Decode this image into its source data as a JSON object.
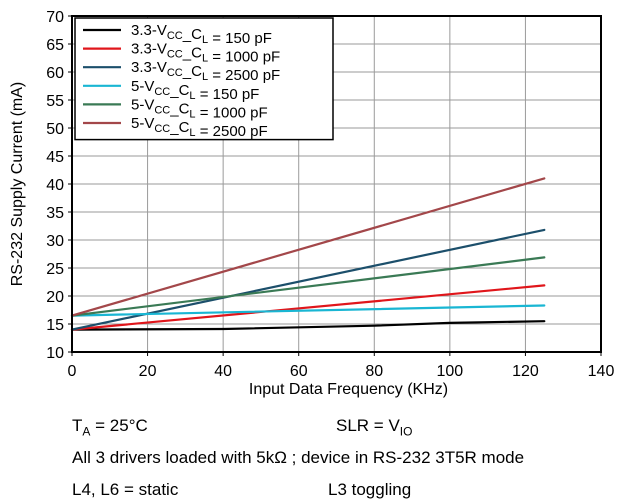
{
  "chart_data": {
    "type": "line",
    "xlabel": "Input Data Frequency (KHz)",
    "ylabel": "RS-232 Supply Current (mA)",
    "xlim": [
      0,
      140
    ],
    "ylim": [
      10,
      70
    ],
    "xticks": [
      0,
      20,
      40,
      60,
      80,
      100,
      120,
      140
    ],
    "yticks": [
      10,
      15,
      20,
      25,
      30,
      35,
      40,
      45,
      50,
      55,
      60,
      65,
      70
    ],
    "grid": true,
    "legend_position": "top-left",
    "series": [
      {
        "name": "3.3-VCC_CL = 150 pF",
        "label": {
          "prefix": "3.3-V",
          "sub1": "CC",
          "mid": "_C",
          "sub2": "L",
          "suffix": " = 150 pF"
        },
        "color": "#000000",
        "points": [
          [
            0,
            14.0
          ],
          [
            40,
            14.1
          ],
          [
            80,
            14.7
          ],
          [
            100,
            15.2
          ],
          [
            125,
            15.5
          ]
        ]
      },
      {
        "name": "3.3-VCC_CL = 1000 pF",
        "label": {
          "prefix": "3.3-V",
          "sub1": "CC",
          "mid": "_C",
          "sub2": "L",
          "suffix": " = 1000 pF"
        },
        "color": "#e0161b",
        "points": [
          [
            0,
            14.0
          ],
          [
            125,
            21.9
          ]
        ]
      },
      {
        "name": "3.3-VCC_CL = 2500 pF",
        "label": {
          "prefix": "3.3-V",
          "sub1": "CC",
          "mid": "_C",
          "sub2": "L",
          "suffix": " = 2500 pF"
        },
        "color": "#1c4f6b",
        "points": [
          [
            0,
            14.0
          ],
          [
            125,
            31.8
          ]
        ]
      },
      {
        "name": "5-VCC_CL = 150 pF",
        "label": {
          "prefix": "5-V",
          "sub1": "CC",
          "mid": "_C",
          "sub2": "L",
          "suffix": " = 150 pF"
        },
        "color": "#19b6d3",
        "points": [
          [
            0,
            16.5
          ],
          [
            125,
            18.3
          ]
        ]
      },
      {
        "name": "5-VCC_CL = 1000 pF",
        "label": {
          "prefix": "5-V",
          "sub1": "CC",
          "mid": "_C",
          "sub2": "L",
          "suffix": " = 1000 pF"
        },
        "color": "#3a7a55",
        "points": [
          [
            0,
            16.5
          ],
          [
            125,
            26.9
          ]
        ]
      },
      {
        "name": "5-VCC_CL = 2500 pF",
        "label": {
          "prefix": "5-V",
          "sub1": "CC",
          "mid": "_C",
          "sub2": "L",
          "suffix": " = 2500 pF"
        },
        "color": "#a3474a",
        "points": [
          [
            0,
            16.5
          ],
          [
            125,
            41.0
          ]
        ]
      }
    ]
  },
  "notes": {
    "ta": {
      "main": "T",
      "sub": "A",
      "rest": " = 25°C"
    },
    "slr": {
      "main": "SLR = V",
      "sub": "IO"
    },
    "drivers": "All 3 drivers loaded with 5kΩ ; device in RS-232 3T5R mode",
    "l4l6": "L4, L6 = static",
    "l3": "L3 toggling"
  }
}
